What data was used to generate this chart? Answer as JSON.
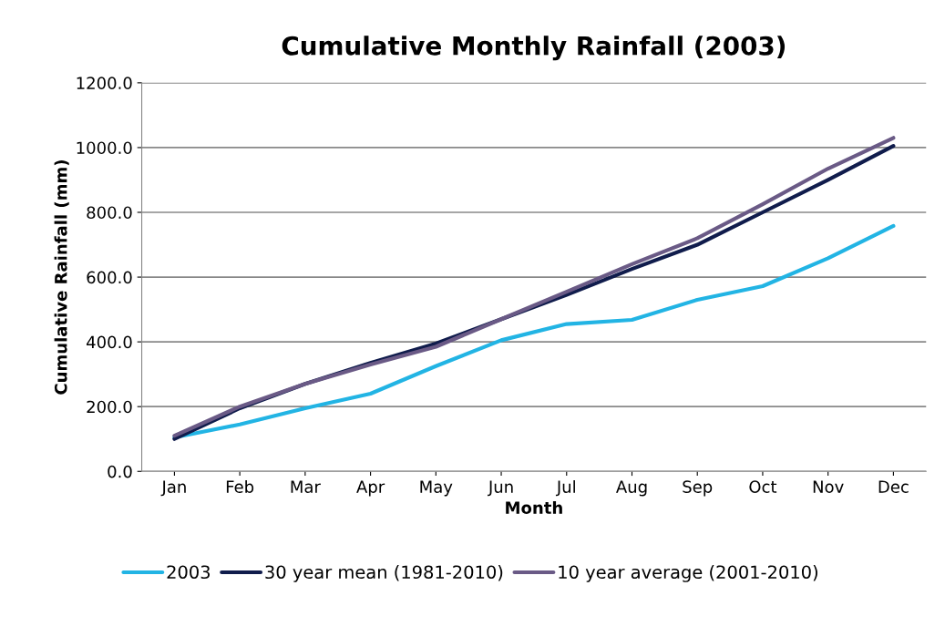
{
  "chart_data": {
    "type": "line",
    "title": "Cumulative Monthly Rainfall (2003)",
    "xlabel": "Month",
    "ylabel": "Cumulative Rainfall (mm)",
    "categories": [
      "Jan",
      "Feb",
      "Mar",
      "Apr",
      "May",
      "Jun",
      "Jul",
      "Aug",
      "Sep",
      "Oct",
      "Nov",
      "Dec"
    ],
    "series": [
      {
        "name": "2003",
        "color": "#22b4e4",
        "values": [
          105,
          145,
          195,
          240,
          325,
          405,
          455,
          468,
          530,
          572,
          658,
          758
        ]
      },
      {
        "name": "30 year mean (1981-2010)",
        "color": "#101c4c",
        "values": [
          100,
          195,
          270,
          335,
          395,
          470,
          545,
          625,
          700,
          800,
          900,
          1005
        ]
      },
      {
        "name": "10 year average (2001-2010)",
        "color": "#6a5a86",
        "values": [
          110,
          200,
          270,
          330,
          385,
          470,
          555,
          640,
          720,
          825,
          935,
          1030
        ]
      }
    ],
    "ylim": [
      0,
      1200
    ],
    "yticks": [
      {
        "value": 0,
        "label": "0.0"
      },
      {
        "value": 200,
        "label": "200.0"
      },
      {
        "value": 400,
        "label": "400.0"
      },
      {
        "value": 600,
        "label": "600.0"
      },
      {
        "value": 800,
        "label": "800.0"
      },
      {
        "value": 1000,
        "label": "1000.0"
      },
      {
        "value": 1200,
        "label": "1200.0"
      }
    ],
    "grid": "y",
    "legend": "bottom",
    "marker": "none",
    "line_style": "solid"
  }
}
